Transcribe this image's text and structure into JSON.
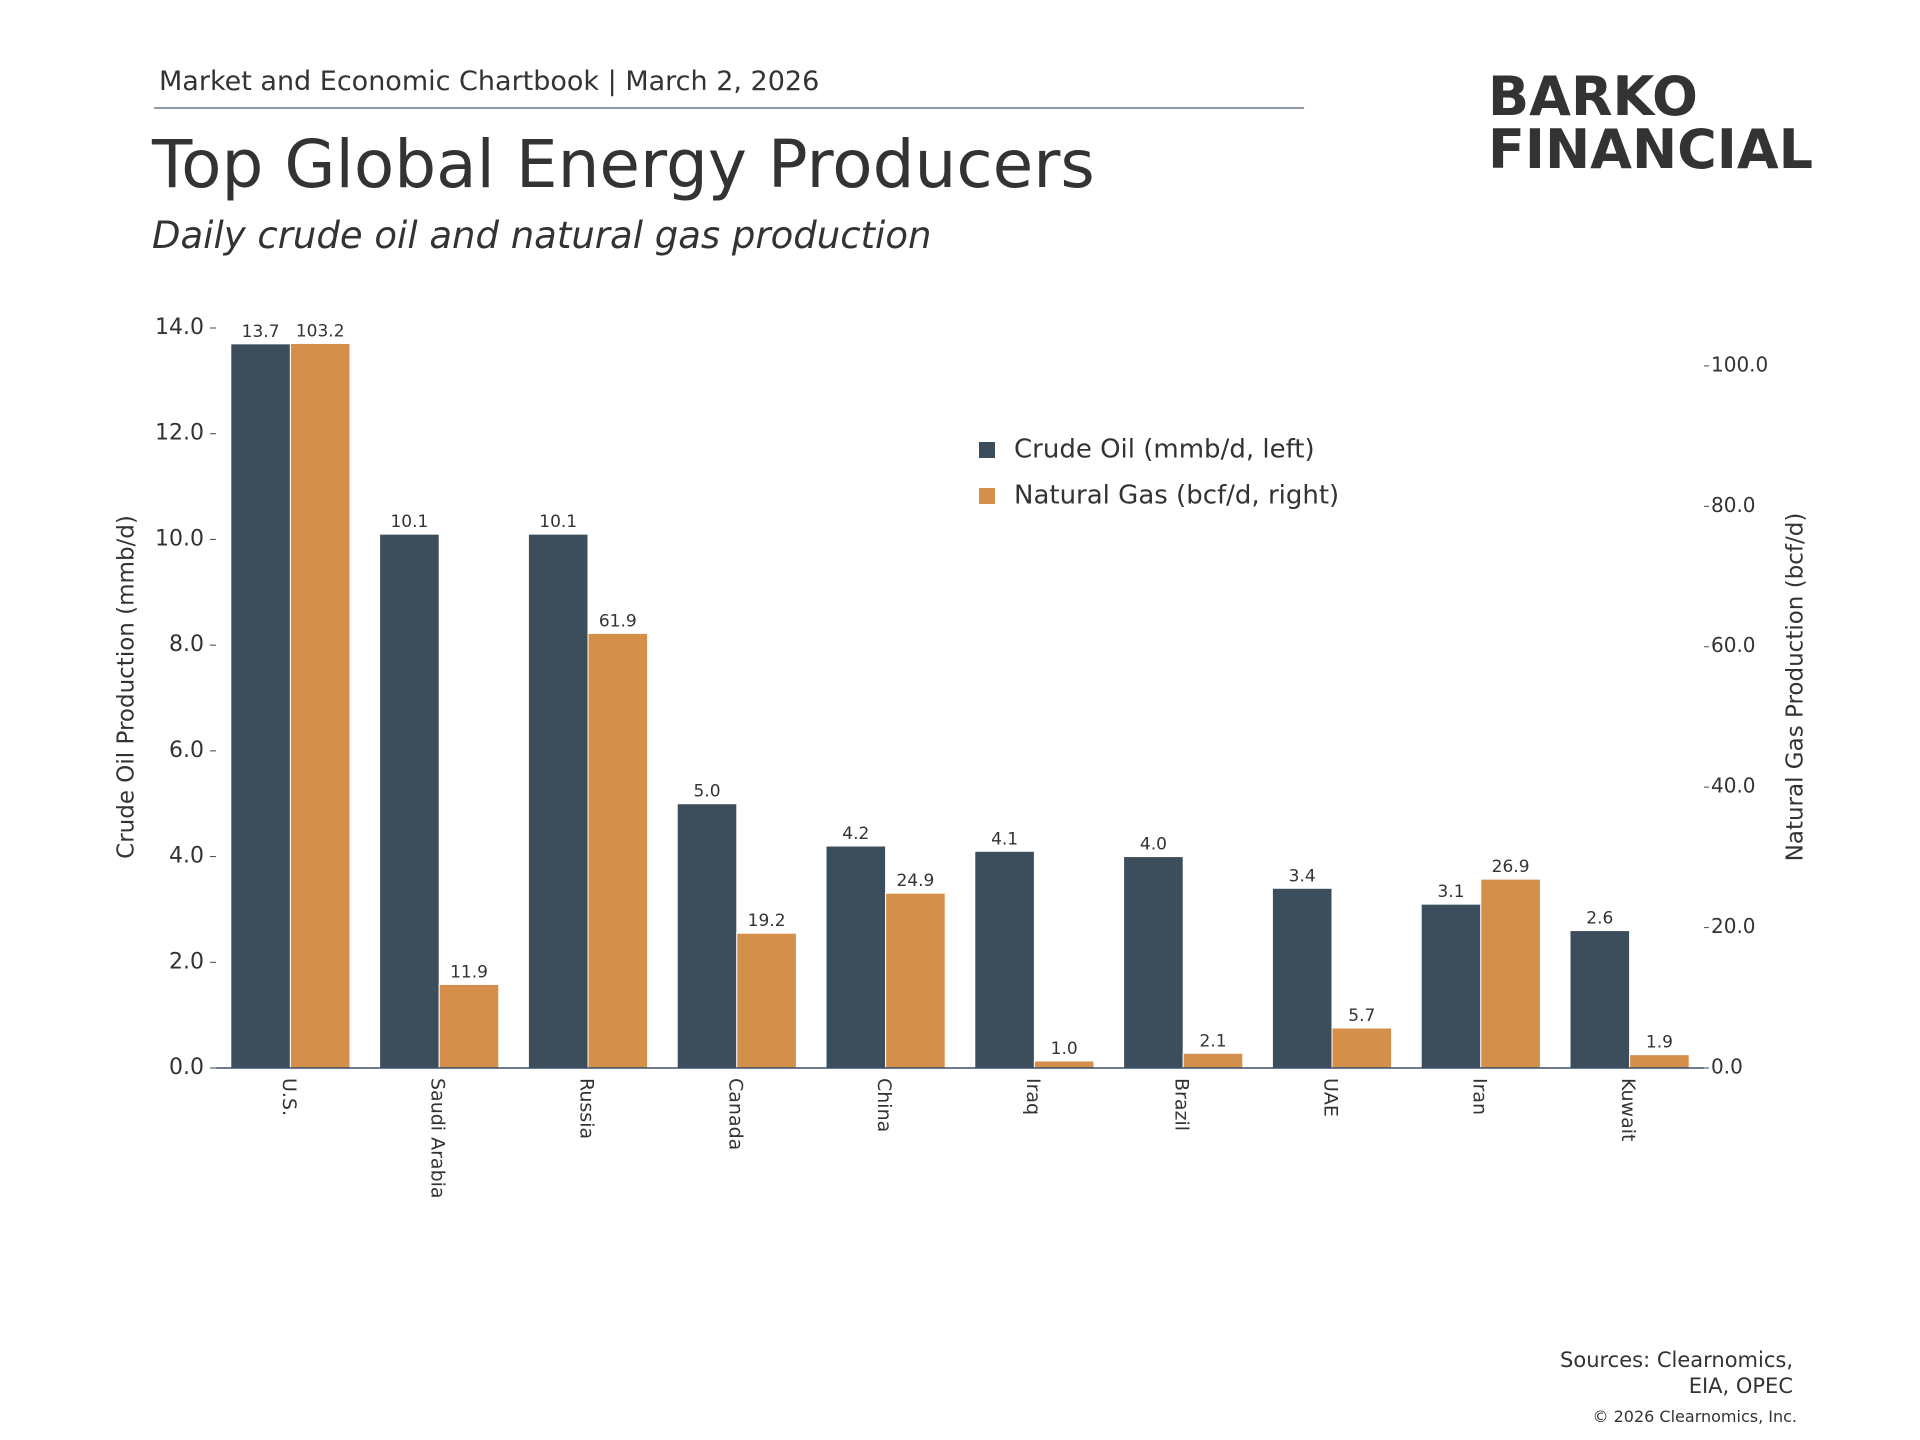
{
  "header": {
    "text": "Market and Economic Chartbook | March 2, 2026"
  },
  "logo": {
    "line1": "BARKO",
    "line2": "FINANCIAL"
  },
  "footer": {
    "sources": [
      "Sources: Clearnomics,",
      "EIA, OPEC"
    ],
    "copyright": "© 2026 Clearnomics, Inc."
  },
  "chart_data": {
    "type": "bar",
    "title": "Top Global Energy Producers",
    "subtitle": "Daily crude oil and natural gas production",
    "ylabel": "Crude Oil Production (mmb/d)",
    "y2label": "Natural Gas Production (bcf/d)",
    "categories": [
      "U.S.",
      "Saudi Arabia",
      "Russia",
      "Canada",
      "China",
      "Iraq",
      "Brazil",
      "UAE",
      "Iran",
      "Kuwait"
    ],
    "series": [
      {
        "name": "Crude Oil (mmb/d, left)",
        "color": "#3c4d5c",
        "values": [
          13.7,
          10.1,
          10.1,
          5,
          4.2,
          4.1,
          4,
          3.4,
          3.1,
          2.6
        ],
        "value_labels": [
          "13.7",
          "10.1",
          "10.1",
          "5.0",
          "4.2",
          "4.1",
          "4.0",
          "3.4",
          "3.1",
          "2.6"
        ]
      },
      {
        "name": "Natural Gas (bcf/d, right)",
        "color": "#d48f4a",
        "axis": "y2",
        "values": [
          103.2,
          11.9,
          61.9,
          19.2,
          24.9,
          1,
          2.1,
          5.7,
          26.9,
          1.9
        ],
        "value_labels": [
          "103.2",
          "11.9",
          "61.9",
          "19.2",
          "24.9",
          "1.0",
          "2.1",
          "5.7",
          "26.9",
          "1.9"
        ]
      }
    ],
    "ylim": [
      0,
      14
    ],
    "yticks": [
      {
        "value": 0,
        "label": "0.0"
      },
      {
        "value": 2,
        "label": "2.0"
      },
      {
        "value": 4,
        "label": "4.0"
      },
      {
        "value": 6,
        "label": "6.0"
      },
      {
        "value": 8,
        "label": "8.0"
      },
      {
        "value": 10,
        "label": "10.0"
      },
      {
        "value": 12,
        "label": "12.0"
      },
      {
        "value": 14,
        "label": "14.0"
      }
    ],
    "y2lim": [
      0,
      105.4
    ],
    "y2ticks": [
      {
        "value": 0,
        "label": "0.0"
      },
      {
        "value": 20,
        "label": "20.0"
      },
      {
        "value": 40,
        "label": "40.0"
      },
      {
        "value": 60,
        "label": "60.0"
      },
      {
        "value": 80,
        "label": "80.0"
      },
      {
        "value": 100,
        "label": "100.0"
      }
    ],
    "grid": false
  }
}
